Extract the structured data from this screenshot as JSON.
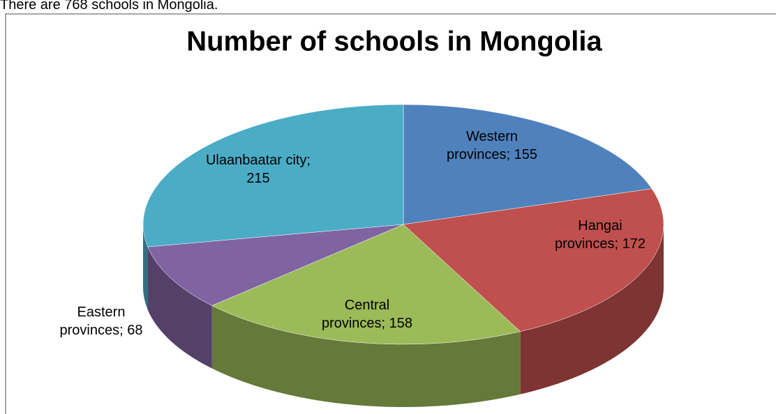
{
  "caption": "There are 768 schools in Mongolia.",
  "chart_data": {
    "type": "pie",
    "title": "Number of schools in Mongolia",
    "values": [
      155,
      172,
      158,
      68,
      215
    ],
    "value_labels": [
      "Western provinces; 155",
      "Hangai provinces; 172",
      "Central provinces; 158",
      "Eastern provinces; 68",
      "Ulaanbaatar city; 215"
    ],
    "colors": [
      "#4f81bd",
      "#c0504d",
      "#9bbb59",
      "#8064a2",
      "#4bacc6"
    ],
    "start_angle": 0,
    "direction": "clockwise"
  }
}
